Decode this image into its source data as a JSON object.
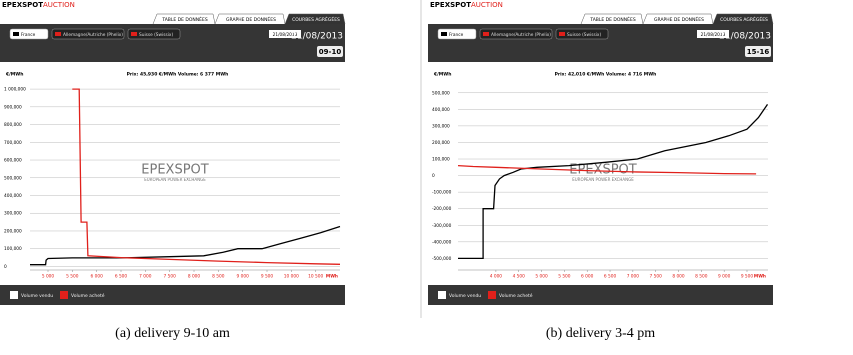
{
  "chart_data": [
    {
      "type": "line",
      "brand": [
        "EPEXSPOT",
        "AUCTION"
      ],
      "tabs": [
        "TABLE DE DONNÉES",
        "GRAPHE DE DONNÉES",
        "COURBES AGRÉGÉES"
      ],
      "buttons": [
        "France",
        "Allemagne/Autriche (Phelix)",
        "Suisse (Swissix)"
      ],
      "date": "21/08/2013",
      "hour": "09-10",
      "subtitle": "Prix: 45,930 €/MWh   Volume: 6 377 MWh",
      "y_unit": "€/MWh",
      "x_unit": "MWh",
      "watermark": [
        "EPEXSPOT",
        "EUROPEAN POWER EXCHANGE"
      ],
      "caption": "(a)  delivery 9-10 am",
      "xlim": [
        4630,
        11000
      ],
      "ylim": [
        -20,
        1040
      ],
      "grid": true,
      "xticks": [
        {
          "value": 5000,
          "label": "5 000"
        },
        {
          "value": 5500,
          "label": "5 500"
        },
        {
          "value": 6000,
          "label": "6 000"
        },
        {
          "value": 6500,
          "label": "6 500"
        },
        {
          "value": 7000,
          "label": "7 000"
        },
        {
          "value": 7500,
          "label": "7 500"
        },
        {
          "value": 8000,
          "label": "8 000"
        },
        {
          "value": 8500,
          "label": "8 500"
        },
        {
          "value": 9000,
          "label": "9 000"
        },
        {
          "value": 9500,
          "label": "9 500"
        },
        {
          "value": 10000,
          "label": "10 000"
        },
        {
          "value": 10500,
          "label": "10 500"
        }
      ],
      "yticks": [
        {
          "value": 1000,
          "label": "1 000,000"
        },
        {
          "value": 900,
          "label": "900,000"
        },
        {
          "value": 800,
          "label": "800,000"
        },
        {
          "value": 700,
          "label": "700,000"
        },
        {
          "value": 600,
          "label": "600,000"
        },
        {
          "value": 500,
          "label": "500,000"
        },
        {
          "value": 400,
          "label": "400,000"
        },
        {
          "value": 300,
          "label": "300,000"
        },
        {
          "value": 200,
          "label": "200,000"
        },
        {
          "value": 100,
          "label": "100,000"
        },
        0
      ],
      "series": [
        {
          "name": "Volume vendu",
          "color": "#000000",
          "x": [
            4630,
            4950,
            4960,
            5000,
            5500,
            6500,
            7500,
            8200,
            8600,
            8900,
            9400,
            9800,
            10200,
            10600,
            11000
          ],
          "values": [
            10,
            10,
            35,
            45,
            48,
            48,
            55,
            60,
            80,
            100,
            100,
            130,
            160,
            190,
            225
          ]
        },
        {
          "name": "Volume acheté",
          "color": "#e0201b",
          "x": [
            5500,
            5640,
            5680,
            5800,
            5820,
            6500,
            7500,
            8500,
            9500,
            10500,
            11000
          ],
          "values": [
            1000,
            1000,
            250,
            250,
            60,
            50,
            40,
            30,
            22,
            15,
            12
          ]
        }
      ]
    },
    {
      "type": "line",
      "brand": [
        "EPEXSPOT",
        "AUCTION"
      ],
      "tabs": [
        "TABLE DE DONNÉES",
        "GRAPHE DE DONNÉES",
        "COURBES AGRÉGÉES"
      ],
      "buttons": [
        "France",
        "Allemagne/Autriche (Phelix)",
        "Suisse (Swissix)"
      ],
      "date": "21/08/2013",
      "hour": "15-16",
      "subtitle": "Prix: 42,010 €/MWh   Volume: 4 716 MWh",
      "y_unit": "€/MWh",
      "x_unit": "MWh",
      "watermark": [
        "EPEXSPOT",
        "EUROPEAN POWER EXCHANGE"
      ],
      "caption": "(b)  delivery 3-4 pm",
      "xlim": [
        3170,
        9960
      ],
      "ylim": [
        -570,
        565
      ],
      "grid": true,
      "xticks": [
        {
          "value": 4000,
          "label": "4 000"
        },
        {
          "value": 4500,
          "label": "4 500"
        },
        {
          "value": 5000,
          "label": "5 000"
        },
        {
          "value": 5500,
          "label": "5 500"
        },
        {
          "value": 6000,
          "label": "6 000"
        },
        {
          "value": 6500,
          "label": "6 500"
        },
        {
          "value": 7000,
          "label": "7 000"
        },
        {
          "value": 7500,
          "label": "7 500"
        },
        {
          "value": 8000,
          "label": "8 000"
        },
        {
          "value": 8500,
          "label": "8 500"
        },
        {
          "value": 9000,
          "label": "9 000"
        },
        {
          "value": 9500,
          "label": "9 500"
        }
      ],
      "yticks": [
        {
          "value": 500,
          "label": "500,000"
        },
        {
          "value": 400,
          "label": "400,000"
        },
        {
          "value": 300,
          "label": "300,000"
        },
        {
          "value": 200,
          "label": "200,000"
        },
        {
          "value": 100,
          "label": "100,000"
        },
        0,
        {
          "value": -100,
          "label": "-100,000"
        },
        {
          "value": -200,
          "label": "-200,000"
        },
        {
          "value": -300,
          "label": "-300,000"
        },
        {
          "value": -400,
          "label": "-400,000"
        },
        {
          "value": -500,
          "label": "-500,000"
        }
      ],
      "series": [
        {
          "name": "Volume vendu",
          "color": "#000000",
          "x": [
            3170,
            3720,
            3720,
            3950,
            3980,
            4080,
            4180,
            4380,
            4550,
            4900,
            5600,
            6400,
            7100,
            7700,
            8600,
            9100,
            9500,
            9750,
            9950
          ],
          "values": [
            -500,
            -500,
            -200,
            -200,
            -60,
            -20,
            0,
            20,
            40,
            50,
            60,
            80,
            100,
            150,
            200,
            240,
            280,
            350,
            430
          ]
        },
        {
          "name": "Volume acheté",
          "color": "#e0201b",
          "x": [
            3170,
            3500,
            4000,
            5000,
            6000,
            7000,
            8000,
            9000,
            9700
          ],
          "values": [
            60,
            55,
            50,
            40,
            30,
            22,
            18,
            12,
            10
          ]
        }
      ]
    }
  ]
}
